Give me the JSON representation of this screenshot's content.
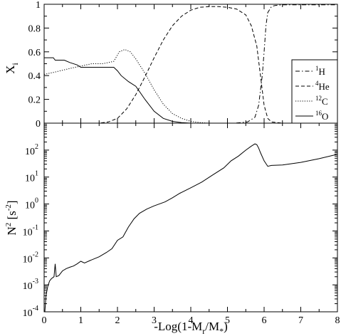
{
  "chart_data": [
    {
      "type": "line",
      "panel": "top",
      "ylabel_base": "X",
      "ylabel_sub": "i",
      "xlim": [
        0,
        8
      ],
      "ylim": [
        0,
        1
      ],
      "yticks": [
        "0",
        "0.2",
        "0.4",
        "0.6",
        "0.8",
        "1"
      ],
      "legend_position": "lower-right",
      "series": [
        {
          "name_sup": "1",
          "name_base": "H",
          "style": "dashdot",
          "x": [
            0,
            5.2,
            5.55,
            5.75,
            5.85,
            5.95,
            6.0,
            6.05,
            6.1,
            6.2,
            6.3,
            6.5,
            7,
            8
          ],
          "y": [
            0,
            0,
            0.01,
            0.05,
            0.15,
            0.4,
            0.6,
            0.82,
            0.93,
            0.98,
            0.99,
            0.995,
            0.995,
            0.995
          ]
        },
        {
          "name_sup": "4",
          "name_base": "He",
          "style": "dashed",
          "x": [
            0,
            1.5,
            1.75,
            2.0,
            2.25,
            2.5,
            2.75,
            3.0,
            3.25,
            3.5,
            3.75,
            4.0,
            4.25,
            4.5,
            4.75,
            5.0,
            5.25,
            5.5,
            5.65,
            5.8,
            5.9,
            6.0,
            6.1,
            6.2,
            6.5,
            8
          ],
          "y": [
            0,
            0,
            0.01,
            0.04,
            0.12,
            0.24,
            0.39,
            0.55,
            0.7,
            0.82,
            0.9,
            0.95,
            0.975,
            0.98,
            0.98,
            0.975,
            0.96,
            0.91,
            0.82,
            0.65,
            0.4,
            0.15,
            0.04,
            0.01,
            0,
            0
          ]
        },
        {
          "name_sup": "12",
          "name_base": "C",
          "style": "dotted",
          "x": [
            0,
            0.3,
            0.7,
            1.0,
            1.3,
            1.6,
            1.9,
            2.05,
            2.2,
            2.35,
            2.5,
            2.75,
            3.0,
            3.25,
            3.5,
            3.75,
            4.0,
            4.25,
            4.5,
            5.0,
            8
          ],
          "y": [
            0.41,
            0.43,
            0.46,
            0.48,
            0.5,
            0.5,
            0.52,
            0.6,
            0.62,
            0.6,
            0.54,
            0.42,
            0.28,
            0.16,
            0.08,
            0.04,
            0.015,
            0.005,
            0,
            0,
            0
          ]
        },
        {
          "name_sup": "16",
          "name_base": "O",
          "style": "solid",
          "x": [
            0,
            0.25,
            0.3,
            0.55,
            0.7,
            0.9,
            1.0,
            1.3,
            1.7,
            1.9,
            2.0,
            2.1,
            2.3,
            2.5,
            2.75,
            3.0,
            3.25,
            3.5,
            3.75,
            4.0,
            4.5,
            8
          ],
          "y": [
            0.55,
            0.55,
            0.53,
            0.53,
            0.51,
            0.49,
            0.47,
            0.47,
            0.47,
            0.47,
            0.44,
            0.4,
            0.35,
            0.31,
            0.2,
            0.1,
            0.04,
            0.015,
            0.004,
            0,
            0,
            0
          ]
        }
      ]
    },
    {
      "type": "line",
      "panel": "bottom",
      "scale": "log",
      "ylabel_base": "N",
      "ylabel_sup": "2",
      "ylabel_unit": "[s",
      "ylabel_unit_sup": "-2",
      "ylabel_unit_close": "]",
      "xlabel": "-Log(1-M",
      "xlabel_sub1": "r",
      "xlabel_mid": "/M",
      "xlabel_sub2": "*",
      "xlabel_close": ")",
      "xlim": [
        0,
        8
      ],
      "ylim": [
        0.0001,
        1000
      ],
      "xticks": [
        "0",
        "1",
        "2",
        "3",
        "4",
        "5",
        "6",
        "7",
        "8"
      ],
      "yticks": [
        {
          "base": "10",
          "exp": "-4"
        },
        {
          "base": "10",
          "exp": "-3"
        },
        {
          "base": "10",
          "exp": "-2"
        },
        {
          "base": "10",
          "exp": "-1"
        },
        {
          "base": "10",
          "exp": "0"
        },
        {
          "base": "10",
          "exp": "1"
        },
        {
          "base": "10",
          "exp": "2"
        }
      ],
      "series": [
        {
          "style": "solid",
          "x": [
            0.02,
            0.05,
            0.1,
            0.15,
            0.2,
            0.27,
            0.3,
            0.33,
            0.4,
            0.5,
            0.6,
            0.7,
            0.8,
            0.9,
            1.0,
            1.1,
            1.25,
            1.5,
            1.7,
            1.85,
            2.0,
            2.15,
            2.3,
            2.45,
            2.6,
            2.8,
            3.0,
            3.3,
            3.5,
            3.7,
            4.0,
            4.3,
            4.6,
            4.9,
            5.1,
            5.3,
            5.5,
            5.65,
            5.75,
            5.8,
            5.85,
            5.9,
            6.0,
            6.1,
            6.2,
            6.5,
            7.0,
            7.5,
            8.0
          ],
          "y": [
            0.0001,
            0.0004,
            0.0009,
            0.0014,
            0.0017,
            0.002,
            0.006,
            0.002,
            0.0022,
            0.0033,
            0.004,
            0.0045,
            0.005,
            0.006,
            0.0075,
            0.0065,
            0.008,
            0.011,
            0.016,
            0.022,
            0.045,
            0.06,
            0.14,
            0.28,
            0.45,
            0.65,
            0.85,
            1.2,
            1.7,
            2.5,
            4.0,
            6.5,
            12,
            22,
            40,
            60,
            100,
            140,
            170,
            160,
            120,
            80,
            40,
            25,
            27,
            28,
            35,
            48,
            70
          ]
        }
      ]
    }
  ]
}
